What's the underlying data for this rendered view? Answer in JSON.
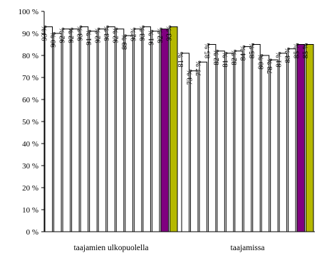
{
  "chart_data": {
    "type": "bar",
    "ylim": [
      0,
      100
    ],
    "y_ticks": [
      "0 %",
      "10 %",
      "20 %",
      "30 %",
      "40 %",
      "50 %",
      "60 %",
      "70 %",
      "80 %",
      "90 %",
      "100 %"
    ],
    "grid": false,
    "groups": [
      {
        "label": "taajamien ulkopuolella",
        "values": [
          93,
          90,
          92,
          92,
          93,
          91,
          92,
          93,
          92,
          89,
          92,
          93,
          91,
          92,
          93
        ],
        "value_labels": [
          "93 %",
          "90 %",
          "92 %",
          "92 %",
          "93 %",
          "91 %",
          "92 %",
          "93 %",
          "92 %",
          "89 %",
          "92%",
          "93 %",
          "91 %",
          "92 %",
          "93 %"
        ]
      },
      {
        "label": "taajamissa",
        "values": [
          81,
          73,
          77,
          85,
          82,
          81,
          82,
          84,
          85,
          80,
          78,
          81,
          83,
          85,
          85
        ],
        "value_labels": [
          "81 %",
          "73 %",
          "77 %",
          "85 %",
          "82 %",
          "81 %",
          "82 %",
          "84 %",
          "85 %",
          "80 %",
          "78 %",
          "81 %",
          "83 %",
          "85 %",
          "85 %"
        ]
      }
    ],
    "bar_colors": [
      "#ffffff",
      "#ffffff",
      "#ffffff",
      "#ffffff",
      "#ffffff",
      "#ffffff",
      "#ffffff",
      "#ffffff",
      "#ffffff",
      "#ffffff",
      "#ffffff",
      "#ffffff",
      "#ffffff",
      "#800080",
      "#b5b800"
    ],
    "bar_edge_color": "#000000"
  }
}
